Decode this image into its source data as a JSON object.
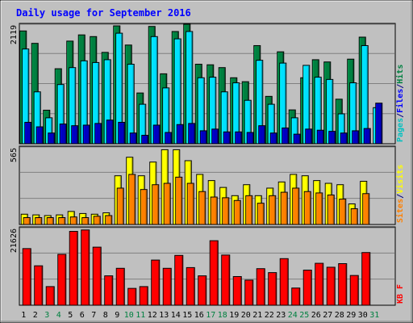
{
  "chart_data": [
    {
      "type": "bar",
      "title": "Daily usage for September 2016",
      "ymax_label": "2119",
      "legend": [
        {
          "label": "Pages",
          "color": "#00c0c0"
        },
        {
          "label": "/",
          "color": "#000080"
        },
        {
          "label": "Files",
          "color": "#0000ff"
        },
        {
          "label": "/",
          "color": "#000080"
        },
        {
          "label": "Hits",
          "color": "#008040"
        }
      ],
      "ylim": [
        0,
        2119
      ],
      "categories": [
        "1",
        "2",
        "3",
        "4",
        "5",
        "6",
        "7",
        "8",
        "9",
        "10",
        "11",
        "12",
        "13",
        "14",
        "15",
        "16",
        "17",
        "18",
        "19",
        "20",
        "21",
        "22",
        "23",
        "24",
        "25",
        "26",
        "27",
        "28",
        "29",
        "30",
        "31"
      ],
      "weekend_days": [
        "3",
        "4",
        "10",
        "11",
        "17",
        "18",
        "24",
        "25",
        "31"
      ],
      "series": [
        {
          "name": "Hits",
          "color": "#008040",
          "values": [
            2000,
            1780,
            595,
            1330,
            1820,
            1930,
            1900,
            1620,
            2090,
            1750,
            900,
            2080,
            1240,
            1990,
            2150,
            1410,
            1400,
            1350,
            1170,
            1100,
            1740,
            840,
            1630,
            600,
            1170,
            1490,
            1450,
            790,
            1500,
            1890,
            null
          ]
        },
        {
          "name": "Files",
          "color": "#00e0ff",
          "values": [
            1680,
            920,
            460,
            1050,
            1350,
            1470,
            1440,
            1490,
            1960,
            1410,
            700,
            1900,
            990,
            1860,
            1990,
            1170,
            1180,
            920,
            1080,
            770,
            1480,
            700,
            1430,
            460,
            1390,
            1180,
            1140,
            530,
            1080,
            1740,
            640
          ]
        },
        {
          "name": "Pages",
          "color": "#0000c0",
          "values": [
            380,
            300,
            190,
            350,
            320,
            330,
            360,
            420,
            380,
            190,
            150,
            330,
            200,
            340,
            360,
            230,
            260,
            210,
            210,
            200,
            320,
            190,
            280,
            170,
            260,
            240,
            220,
            190,
            230,
            270,
            720
          ]
        }
      ]
    },
    {
      "type": "bar",
      "ymax_label": "565",
      "legend": [
        {
          "label": "Sites",
          "color": "#ff8000"
        },
        {
          "label": "/",
          "color": "#000080"
        },
        {
          "label": "Visits",
          "color": "#ffff00"
        }
      ],
      "ylim": [
        0,
        565
      ],
      "categories": [
        "1",
        "2",
        "3",
        "4",
        "5",
        "6",
        "7",
        "8",
        "9",
        "10",
        "11",
        "12",
        "13",
        "14",
        "15",
        "16",
        "17",
        "18",
        "19",
        "20",
        "21",
        "22",
        "23",
        "24",
        "25",
        "26",
        "27",
        "28",
        "29",
        "30",
        "31"
      ],
      "series": [
        {
          "name": "Visits",
          "color": "#ffff00",
          "values": [
            75,
            70,
            65,
            70,
            95,
            80,
            75,
            85,
            355,
            490,
            355,
            455,
            545,
            545,
            465,
            365,
            320,
            270,
            210,
            290,
            210,
            265,
            310,
            365,
            355,
            320,
            300,
            290,
            150,
            315,
            null
          ]
        },
        {
          "name": "Sites",
          "color": "#ff8000",
          "values": [
            50,
            50,
            50,
            50,
            55,
            50,
            60,
            65,
            265,
            365,
            255,
            290,
            300,
            345,
            300,
            240,
            200,
            195,
            175,
            210,
            155,
            210,
            235,
            265,
            240,
            230,
            215,
            185,
            115,
            225,
            null
          ]
        }
      ]
    },
    {
      "type": "bar",
      "ymax_label": "21626",
      "legend": [
        {
          "label": "KB F",
          "color": "#ff0000"
        }
      ],
      "ylim": [
        0,
        21626
      ],
      "categories": [
        "1",
        "2",
        "3",
        "4",
        "5",
        "6",
        "7",
        "8",
        "9",
        "10",
        "11",
        "12",
        "13",
        "14",
        "15",
        "16",
        "17",
        "18",
        "19",
        "20",
        "21",
        "22",
        "23",
        "24",
        "25",
        "26",
        "27",
        "28",
        "29",
        "30",
        "31"
      ],
      "series": [
        {
          "name": "KB F",
          "color": "#ff0000",
          "values": [
            15800,
            11000,
            5200,
            14200,
            20600,
            21000,
            16200,
            8200,
            10300,
            4700,
            5200,
            12600,
            10300,
            13900,
            10500,
            8200,
            18000,
            14000,
            8000,
            7000,
            10200,
            9100,
            13000,
            4800,
            9800,
            11700,
            10600,
            11600,
            8300,
            14700,
            null
          ]
        }
      ]
    }
  ]
}
